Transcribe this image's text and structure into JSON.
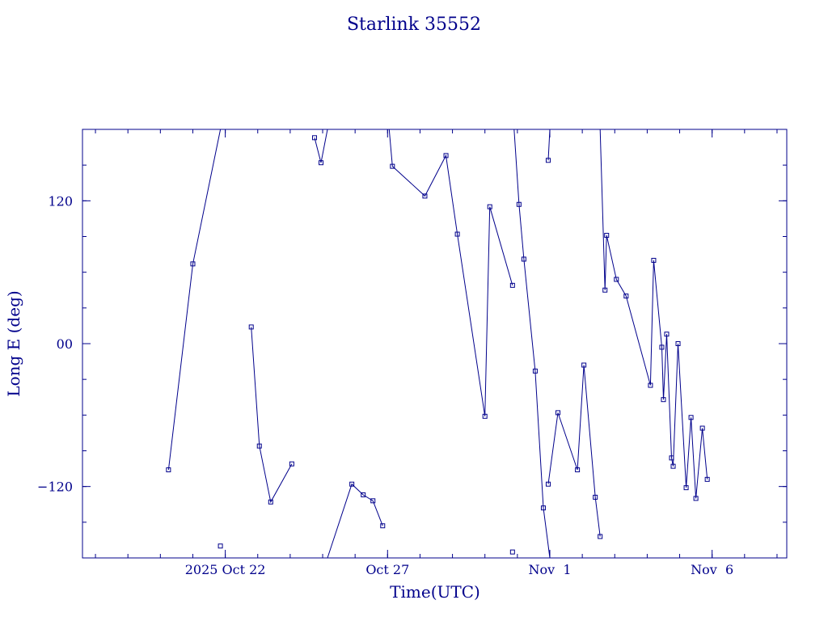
{
  "chart_data": {
    "type": "line",
    "title": "Starlink 35552",
    "xlabel": "Time(UTC)",
    "ylabel": "Long E (deg)",
    "color": "#00008b",
    "x_unit": "days",
    "x_ticks": [
      {
        "x": 22,
        "label": "2025 Oct 22"
      },
      {
        "x": 27,
        "label": "Oct 27"
      },
      {
        "x": 32,
        "label": "Nov  1"
      },
      {
        "x": 37,
        "label": "Nov  6"
      }
    ],
    "y_ticks": [
      {
        "y": 120,
        "label": "120"
      },
      {
        "y": 0,
        "label": "00"
      },
      {
        "y": -120,
        "label": "−120"
      }
    ],
    "xlim": [
      17.6,
      39.3
    ],
    "ylim": [
      -180,
      180
    ],
    "wrap_range": [
      -180,
      180
    ],
    "series": [
      {
        "markers": "square",
        "points": [
          [
            20.25,
            -106
          ],
          [
            21.0,
            67
          ],
          [
            21.85,
            180
          ],
          [
            21.85,
            -170
          ],
          [
            22.8,
            14
          ],
          [
            23.05,
            -86
          ],
          [
            23.4,
            -133
          ],
          [
            24.05,
            -101
          ],
          [
            24.75,
            173
          ],
          [
            24.95,
            152
          ],
          [
            25.15,
            180
          ],
          [
            25.15,
            -180
          ],
          [
            25.9,
            -118
          ],
          [
            26.25,
            -127
          ],
          [
            26.55,
            -132
          ],
          [
            26.85,
            -153
          ],
          [
            27.05,
            180
          ],
          [
            27.15,
            149
          ],
          [
            28.15,
            124
          ],
          [
            28.8,
            158
          ],
          [
            29.15,
            92
          ],
          [
            30.0,
            -61
          ],
          [
            30.15,
            115
          ],
          [
            30.85,
            49
          ],
          [
            30.85,
            -175
          ],
          [
            30.9,
            180
          ],
          [
            31.05,
            117
          ],
          [
            31.2,
            71
          ],
          [
            31.55,
            -23
          ],
          [
            31.8,
            -138
          ],
          [
            32.0,
            -180
          ],
          [
            32.0,
            180
          ],
          [
            31.95,
            154
          ],
          [
            31.95,
            -118
          ],
          [
            32.25,
            -58
          ],
          [
            32.85,
            -106
          ],
          [
            33.05,
            -18
          ],
          [
            33.4,
            -129
          ],
          [
            33.55,
            -162
          ],
          [
            33.55,
            180
          ],
          [
            33.7,
            45
          ],
          [
            33.75,
            91
          ],
          [
            34.05,
            54
          ],
          [
            34.35,
            40
          ],
          [
            35.1,
            -35
          ],
          [
            35.2,
            70
          ],
          [
            35.45,
            -3
          ],
          [
            35.5,
            -47
          ],
          [
            35.6,
            8
          ],
          [
            35.75,
            -96
          ],
          [
            35.8,
            -103
          ],
          [
            35.95,
            0
          ],
          [
            36.2,
            -121
          ],
          [
            36.35,
            -62
          ],
          [
            36.5,
            -130
          ],
          [
            36.7,
            -71
          ],
          [
            36.85,
            -114
          ]
        ]
      }
    ]
  }
}
